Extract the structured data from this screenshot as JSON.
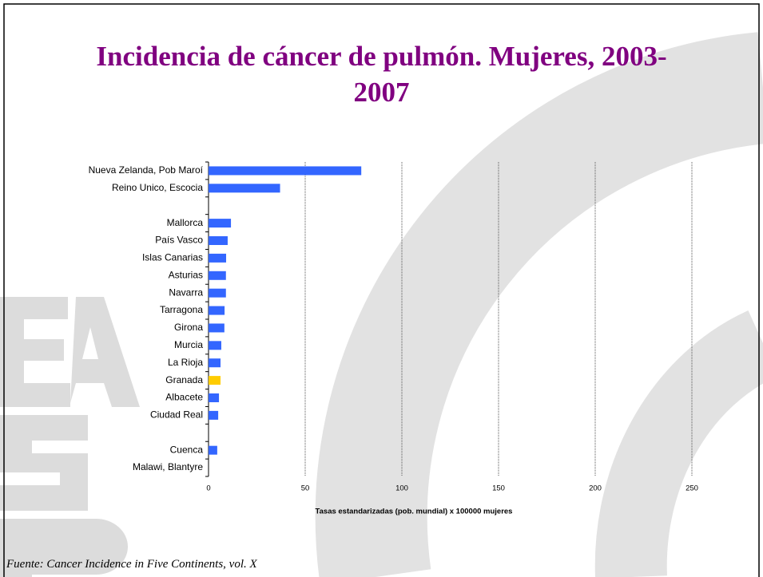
{
  "chart_data": {
    "type": "barh",
    "title": "Incidencia de cáncer de pulmón. Mujeres, 2003-2007",
    "categories": [
      "Nueva Zelanda, Pob Maroí",
      "Reino Unico, Escocia",
      null,
      "Mallorca",
      "País Vasco",
      "Islas Canarias",
      "Asturias",
      "Navarra",
      "Tarragona",
      "Girona",
      "Murcia",
      "La Rioja",
      "Granada",
      "Albacete",
      "Ciudad Real",
      null,
      "Cuenca",
      "Malawi, Blantyre"
    ],
    "values": [
      79,
      37,
      null,
      11.6,
      9.9,
      9.1,
      9,
      9,
      8.3,
      8.2,
      6.6,
      6.2,
      6.2,
      5.4,
      5,
      null,
      4.5,
      0
    ],
    "colors": [
      "#3366ff",
      "#3366ff",
      null,
      "#3366ff",
      "#3366ff",
      "#3366ff",
      "#3366ff",
      "#3366ff",
      "#3366ff",
      "#3366ff",
      "#3366ff",
      "#3366ff",
      "#ffcc00",
      "#3366ff",
      "#3366ff",
      null,
      "#3366ff",
      "#3366ff"
    ],
    "xlim": [
      0,
      250
    ],
    "xticks": [
      0,
      50,
      100,
      150,
      200,
      250
    ],
    "grid": true,
    "xlabel": "Tasas estandarizadas (pob. mundial) x 100000 mujeres",
    "source": "Fuente: Cancer Incidence in Five Continents, vol. X"
  }
}
